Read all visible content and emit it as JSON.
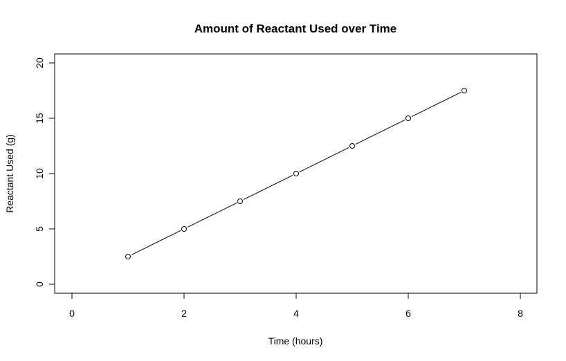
{
  "chart_data": {
    "type": "line",
    "title": "Amount of Reactant Used over Time",
    "xlabel": "Time (hours)",
    "ylabel": "Reactant Used (g)",
    "x": [
      1,
      2,
      3,
      4,
      5,
      6,
      7
    ],
    "series": [
      {
        "name": "Reactant Used",
        "values": [
          2.5,
          5,
          7.5,
          10,
          12.5,
          15,
          17.5
        ],
        "marker": "open-circle",
        "line_style": "solid",
        "color": "#000000"
      }
    ],
    "xlim": [
      -0.3,
      8.3
    ],
    "ylim": [
      -0.8,
      20.8
    ],
    "xticks": [
      0,
      2,
      4,
      6,
      8
    ],
    "yticks": [
      0,
      5,
      10,
      15,
      20
    ],
    "grid": false,
    "legend": null
  }
}
